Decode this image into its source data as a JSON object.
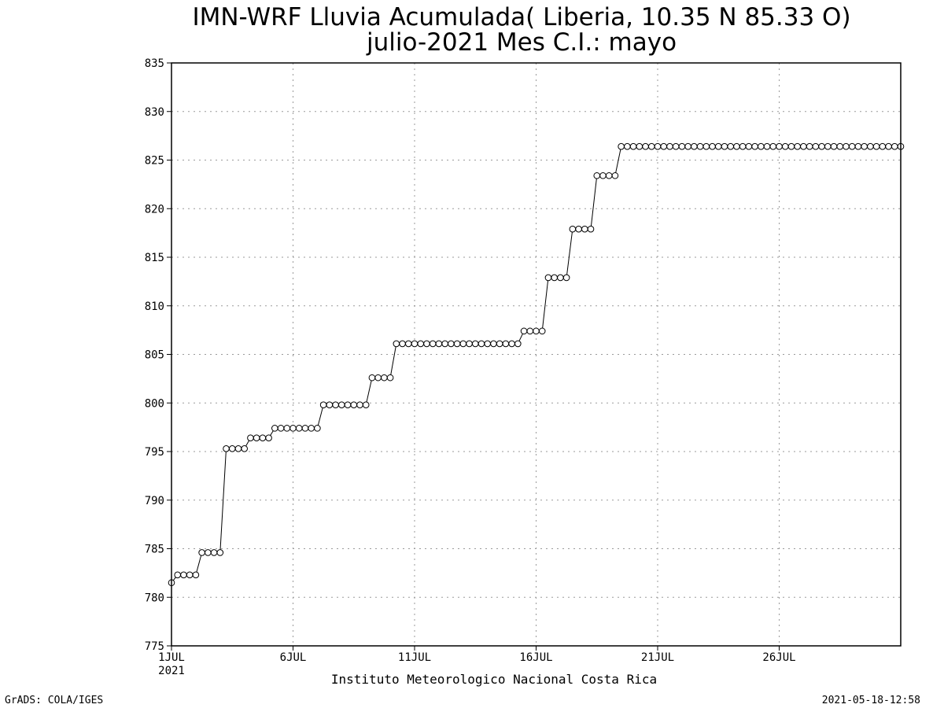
{
  "chart_data": {
    "type": "line",
    "title": "IMN-WRF  Lluvia Acumulada( Liberia, 10.35  N 85.33  O)",
    "subtitle": "julio-2021 Mes C.I.: mayo",
    "xlabel": "Instituto Meteorologico Nacional Costa Rica",
    "ylabel": "",
    "grid": true,
    "markers": "open-circle",
    "ylim": [
      775,
      835
    ],
    "yticks": [
      775,
      780,
      785,
      790,
      795,
      800,
      805,
      810,
      815,
      820,
      825,
      830,
      835
    ],
    "xlim": [
      "2021-07-01 00:00",
      "2021-07-31 00:00"
    ],
    "xticks": [
      {
        "label": "1JUL",
        "sub": "2021",
        "date": "2021-07-01"
      },
      {
        "label": "6JUL",
        "sub": "",
        "date": "2021-07-06"
      },
      {
        "label": "11JUL",
        "sub": "",
        "date": "2021-07-11"
      },
      {
        "label": "16JUL",
        "sub": "",
        "date": "2021-07-16"
      },
      {
        "label": "21JUL",
        "sub": "",
        "date": "2021-07-21"
      },
      {
        "label": "26JUL",
        "sub": "",
        "date": "2021-07-26"
      }
    ],
    "step_hours": 6,
    "x_start": "2021-07-01 00:00",
    "series": [
      {
        "values": [
          781.5,
          782.3,
          782.3,
          782.3,
          782.3,
          784.6,
          784.6,
          784.6,
          784.6,
          795.3,
          795.3,
          795.3,
          795.3,
          796.4,
          796.4,
          796.4,
          796.4,
          797.4,
          797.4,
          797.4,
          797.4,
          797.4,
          797.4,
          797.4,
          797.4,
          799.8,
          799.8,
          799.8,
          799.8,
          799.8,
          799.8,
          799.8,
          799.8,
          802.6,
          802.6,
          802.6,
          802.6,
          806.1,
          806.1,
          806.1,
          806.1,
          806.1,
          806.1,
          806.1,
          806.1,
          806.1,
          806.1,
          806.1,
          806.1,
          806.1,
          806.1,
          806.1,
          806.1,
          806.1,
          806.1,
          806.1,
          806.1,
          806.1,
          807.4,
          807.4,
          807.4,
          807.4,
          812.9,
          812.9,
          812.9,
          812.9,
          817.9,
          817.9,
          817.9,
          817.9,
          823.4,
          823.4,
          823.4,
          823.4,
          826.4,
          826.4,
          826.4,
          826.4,
          826.4,
          826.4,
          826.4,
          826.4,
          826.4,
          826.4,
          826.4,
          826.4,
          826.4,
          826.4,
          826.4,
          826.4,
          826.4,
          826.4,
          826.4,
          826.4,
          826.4,
          826.4,
          826.4,
          826.4,
          826.4,
          826.4,
          826.4,
          826.4,
          826.4,
          826.4,
          826.4,
          826.4,
          826.4,
          826.4,
          826.4,
          826.4,
          826.4,
          826.4,
          826.4,
          826.4,
          826.4,
          826.4,
          826.4,
          826.4,
          826.4,
          826.4,
          826.4
        ]
      }
    ]
  },
  "footer": {
    "left": "GrADS: COLA/IGES",
    "right": "2021-05-18-12:58"
  }
}
